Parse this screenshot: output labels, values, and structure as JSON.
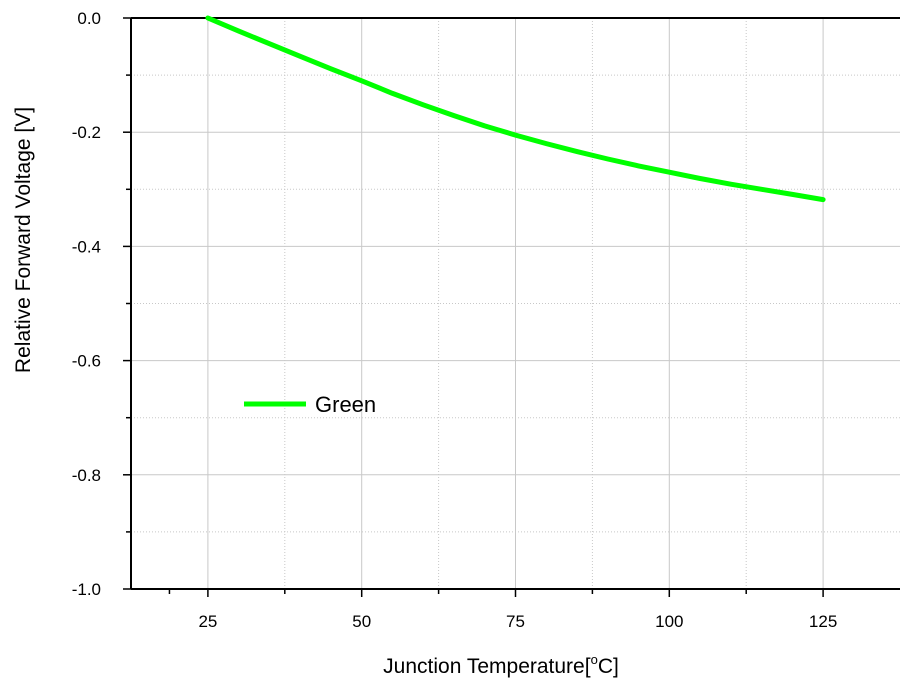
{
  "chart_data": {
    "type": "line",
    "title": "",
    "xlabel": "Junction Temperature[",
    "xlabel_sup": "o",
    "xlabel_tail": "C]",
    "ylabel": "Relative Forward Voltage [V]",
    "xlim": [
      12.5,
      137.5
    ],
    "ylim": [
      -1.0,
      0.0
    ],
    "x_ticks": [
      25,
      50,
      75,
      100,
      125
    ],
    "x_tick_labels": [
      "25",
      "50",
      "75",
      "100",
      "125"
    ],
    "y_ticks": [
      0.0,
      -0.2,
      -0.4,
      -0.6,
      -0.8,
      -1.0
    ],
    "y_tick_labels": [
      "0.0",
      "-0.2",
      "-0.4",
      "-0.6",
      "-0.8",
      "-1.0"
    ],
    "grid": true,
    "legend_position": "center-left",
    "series": [
      {
        "name": "Green",
        "color": "#00ff00",
        "x": [
          25,
          30,
          35,
          40,
          45,
          50,
          55,
          60,
          65,
          70,
          75,
          80,
          85,
          90,
          95,
          100,
          105,
          110,
          115,
          120,
          125
        ],
        "y": [
          0.0,
          -0.023,
          -0.045,
          -0.067,
          -0.089,
          -0.11,
          -0.132,
          -0.152,
          -0.171,
          -0.189,
          -0.205,
          -0.22,
          -0.234,
          -0.247,
          -0.259,
          -0.27,
          -0.281,
          -0.291,
          -0.3,
          -0.309,
          -0.318
        ]
      }
    ]
  }
}
